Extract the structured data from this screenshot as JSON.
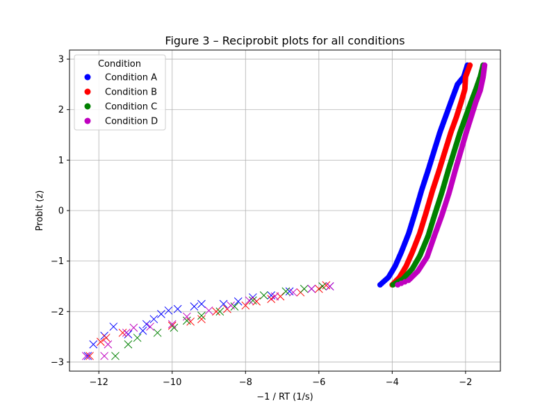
{
  "chart_data": {
    "type": "scatter",
    "title": "Figure 3 – Reciprobit plots for all conditions",
    "xlabel": "−1 / RT (1/s)",
    "ylabel": "Probit (z)",
    "xlim": [
      -12.8,
      -1.05
    ],
    "ylim": [
      -3.18,
      3.18
    ],
    "xticks": [
      -12,
      -10,
      -8,
      -6,
      -4,
      -2
    ],
    "xtick_labels": [
      "−12",
      "−10",
      "−8",
      "−6",
      "−4",
      "−2"
    ],
    "yticks": [
      -3,
      -2,
      -1,
      0,
      1,
      2,
      3
    ],
    "ytick_labels": [
      "−3",
      "−2",
      "−1",
      "0",
      "1",
      "2",
      "3"
    ],
    "grid": true,
    "legend": {
      "title": "Condition",
      "position": "top-left"
    },
    "series": [
      {
        "name": "Condition A",
        "color": "#0000ff",
        "marker": "circle",
        "points": [
          [
            -4.33,
            -1.47
          ],
          [
            -4.1,
            -1.32
          ],
          [
            -3.92,
            -1.1
          ],
          [
            -3.75,
            -0.82
          ],
          [
            -3.55,
            -0.45
          ],
          [
            -3.38,
            -0.05
          ],
          [
            -3.2,
            0.4
          ],
          [
            -3.02,
            0.8
          ],
          [
            -2.85,
            1.2
          ],
          [
            -2.7,
            1.55
          ],
          [
            -2.55,
            1.85
          ],
          [
            -2.4,
            2.15
          ],
          [
            -2.22,
            2.5
          ],
          [
            -2.05,
            2.65
          ],
          [
            -1.95,
            2.88
          ]
        ],
        "extreme_points": [
          [
            -12.3,
            -2.88
          ],
          [
            -12.15,
            -2.65
          ],
          [
            -11.85,
            -2.48
          ],
          [
            -11.6,
            -2.3
          ],
          [
            -11.2,
            -2.45
          ],
          [
            -10.8,
            -2.38
          ],
          [
            -10.7,
            -2.25
          ],
          [
            -10.5,
            -2.15
          ],
          [
            -10.3,
            -2.05
          ],
          [
            -10.1,
            -1.98
          ],
          [
            -9.85,
            -1.95
          ],
          [
            -9.4,
            -1.9
          ],
          [
            -9.2,
            -1.85
          ],
          [
            -8.6,
            -1.85
          ],
          [
            -8.2,
            -1.8
          ],
          [
            -7.8,
            -1.72
          ],
          [
            -7.3,
            -1.68
          ],
          [
            -6.8,
            -1.6
          ],
          [
            -6.2,
            -1.55
          ],
          [
            -5.7,
            -1.5
          ]
        ]
      },
      {
        "name": "Condition B",
        "color": "#ff0000",
        "marker": "circle",
        "points": [
          [
            -4.0,
            -1.47
          ],
          [
            -3.8,
            -1.32
          ],
          [
            -3.62,
            -1.1
          ],
          [
            -3.45,
            -0.82
          ],
          [
            -3.25,
            -0.45
          ],
          [
            -3.08,
            -0.05
          ],
          [
            -2.9,
            0.4
          ],
          [
            -2.72,
            0.8
          ],
          [
            -2.55,
            1.2
          ],
          [
            -2.4,
            1.55
          ],
          [
            -2.25,
            1.85
          ],
          [
            -2.12,
            2.15
          ],
          [
            -2.02,
            2.4
          ],
          [
            -2.0,
            2.65
          ],
          [
            -1.88,
            2.88
          ]
        ],
        "extreme_points": [
          [
            -12.25,
            -2.88
          ],
          [
            -11.95,
            -2.6
          ],
          [
            -11.8,
            -2.52
          ],
          [
            -11.35,
            -2.42
          ],
          [
            -10.0,
            -2.28
          ],
          [
            -9.5,
            -2.2
          ],
          [
            -9.2,
            -2.15
          ],
          [
            -8.8,
            -2.0
          ],
          [
            -8.5,
            -1.95
          ],
          [
            -8.0,
            -1.88
          ],
          [
            -7.7,
            -1.8
          ],
          [
            -7.3,
            -1.75
          ],
          [
            -7.05,
            -1.7
          ],
          [
            -6.5,
            -1.62
          ],
          [
            -6.0,
            -1.55
          ],
          [
            -5.8,
            -1.48
          ]
        ]
      },
      {
        "name": "Condition C",
        "color": "#008000",
        "marker": "circle",
        "points": [
          [
            -3.98,
            -1.47
          ],
          [
            -3.7,
            -1.35
          ],
          [
            -3.45,
            -1.15
          ],
          [
            -3.25,
            -0.9
          ],
          [
            -3.02,
            -0.5
          ],
          [
            -2.85,
            -0.1
          ],
          [
            -2.65,
            0.35
          ],
          [
            -2.47,
            0.8
          ],
          [
            -2.3,
            1.2
          ],
          [
            -2.15,
            1.55
          ],
          [
            -2.0,
            1.85
          ],
          [
            -1.85,
            2.15
          ],
          [
            -1.72,
            2.4
          ],
          [
            -1.6,
            2.65
          ],
          [
            -1.52,
            2.88
          ]
        ],
        "extreme_points": [
          [
            -11.55,
            -2.88
          ],
          [
            -11.2,
            -2.65
          ],
          [
            -10.95,
            -2.52
          ],
          [
            -10.4,
            -2.42
          ],
          [
            -9.95,
            -2.32
          ],
          [
            -9.6,
            -2.18
          ],
          [
            -9.2,
            -2.08
          ],
          [
            -8.7,
            -2.0
          ],
          [
            -8.3,
            -1.9
          ],
          [
            -7.8,
            -1.78
          ],
          [
            -7.5,
            -1.68
          ],
          [
            -6.9,
            -1.6
          ],
          [
            -6.4,
            -1.55
          ],
          [
            -5.9,
            -1.5
          ]
        ]
      },
      {
        "name": "Condition D",
        "color": "#bf00bf",
        "marker": "circle",
        "points": [
          [
            -3.85,
            -1.47
          ],
          [
            -3.55,
            -1.38
          ],
          [
            -3.3,
            -1.2
          ],
          [
            -3.05,
            -0.92
          ],
          [
            -2.85,
            -0.5
          ],
          [
            -2.65,
            -0.1
          ],
          [
            -2.45,
            0.35
          ],
          [
            -2.28,
            0.8
          ],
          [
            -2.12,
            1.2
          ],
          [
            -1.98,
            1.55
          ],
          [
            -1.85,
            1.85
          ],
          [
            -1.72,
            2.15
          ],
          [
            -1.6,
            2.38
          ],
          [
            -1.52,
            2.65
          ],
          [
            -1.48,
            2.88
          ]
        ],
        "extreme_points": [
          [
            -12.35,
            -2.88
          ],
          [
            -11.85,
            -2.88
          ],
          [
            -11.75,
            -2.65
          ],
          [
            -11.25,
            -2.42
          ],
          [
            -11.05,
            -2.32
          ],
          [
            -10.6,
            -2.3
          ],
          [
            -10.0,
            -2.25
          ],
          [
            -9.6,
            -2.1
          ],
          [
            -9.0,
            -1.98
          ],
          [
            -8.4,
            -1.88
          ],
          [
            -7.9,
            -1.78
          ],
          [
            -7.2,
            -1.7
          ],
          [
            -6.7,
            -1.62
          ],
          [
            -6.2,
            -1.55
          ],
          [
            -5.7,
            -1.5
          ]
        ]
      }
    ]
  }
}
